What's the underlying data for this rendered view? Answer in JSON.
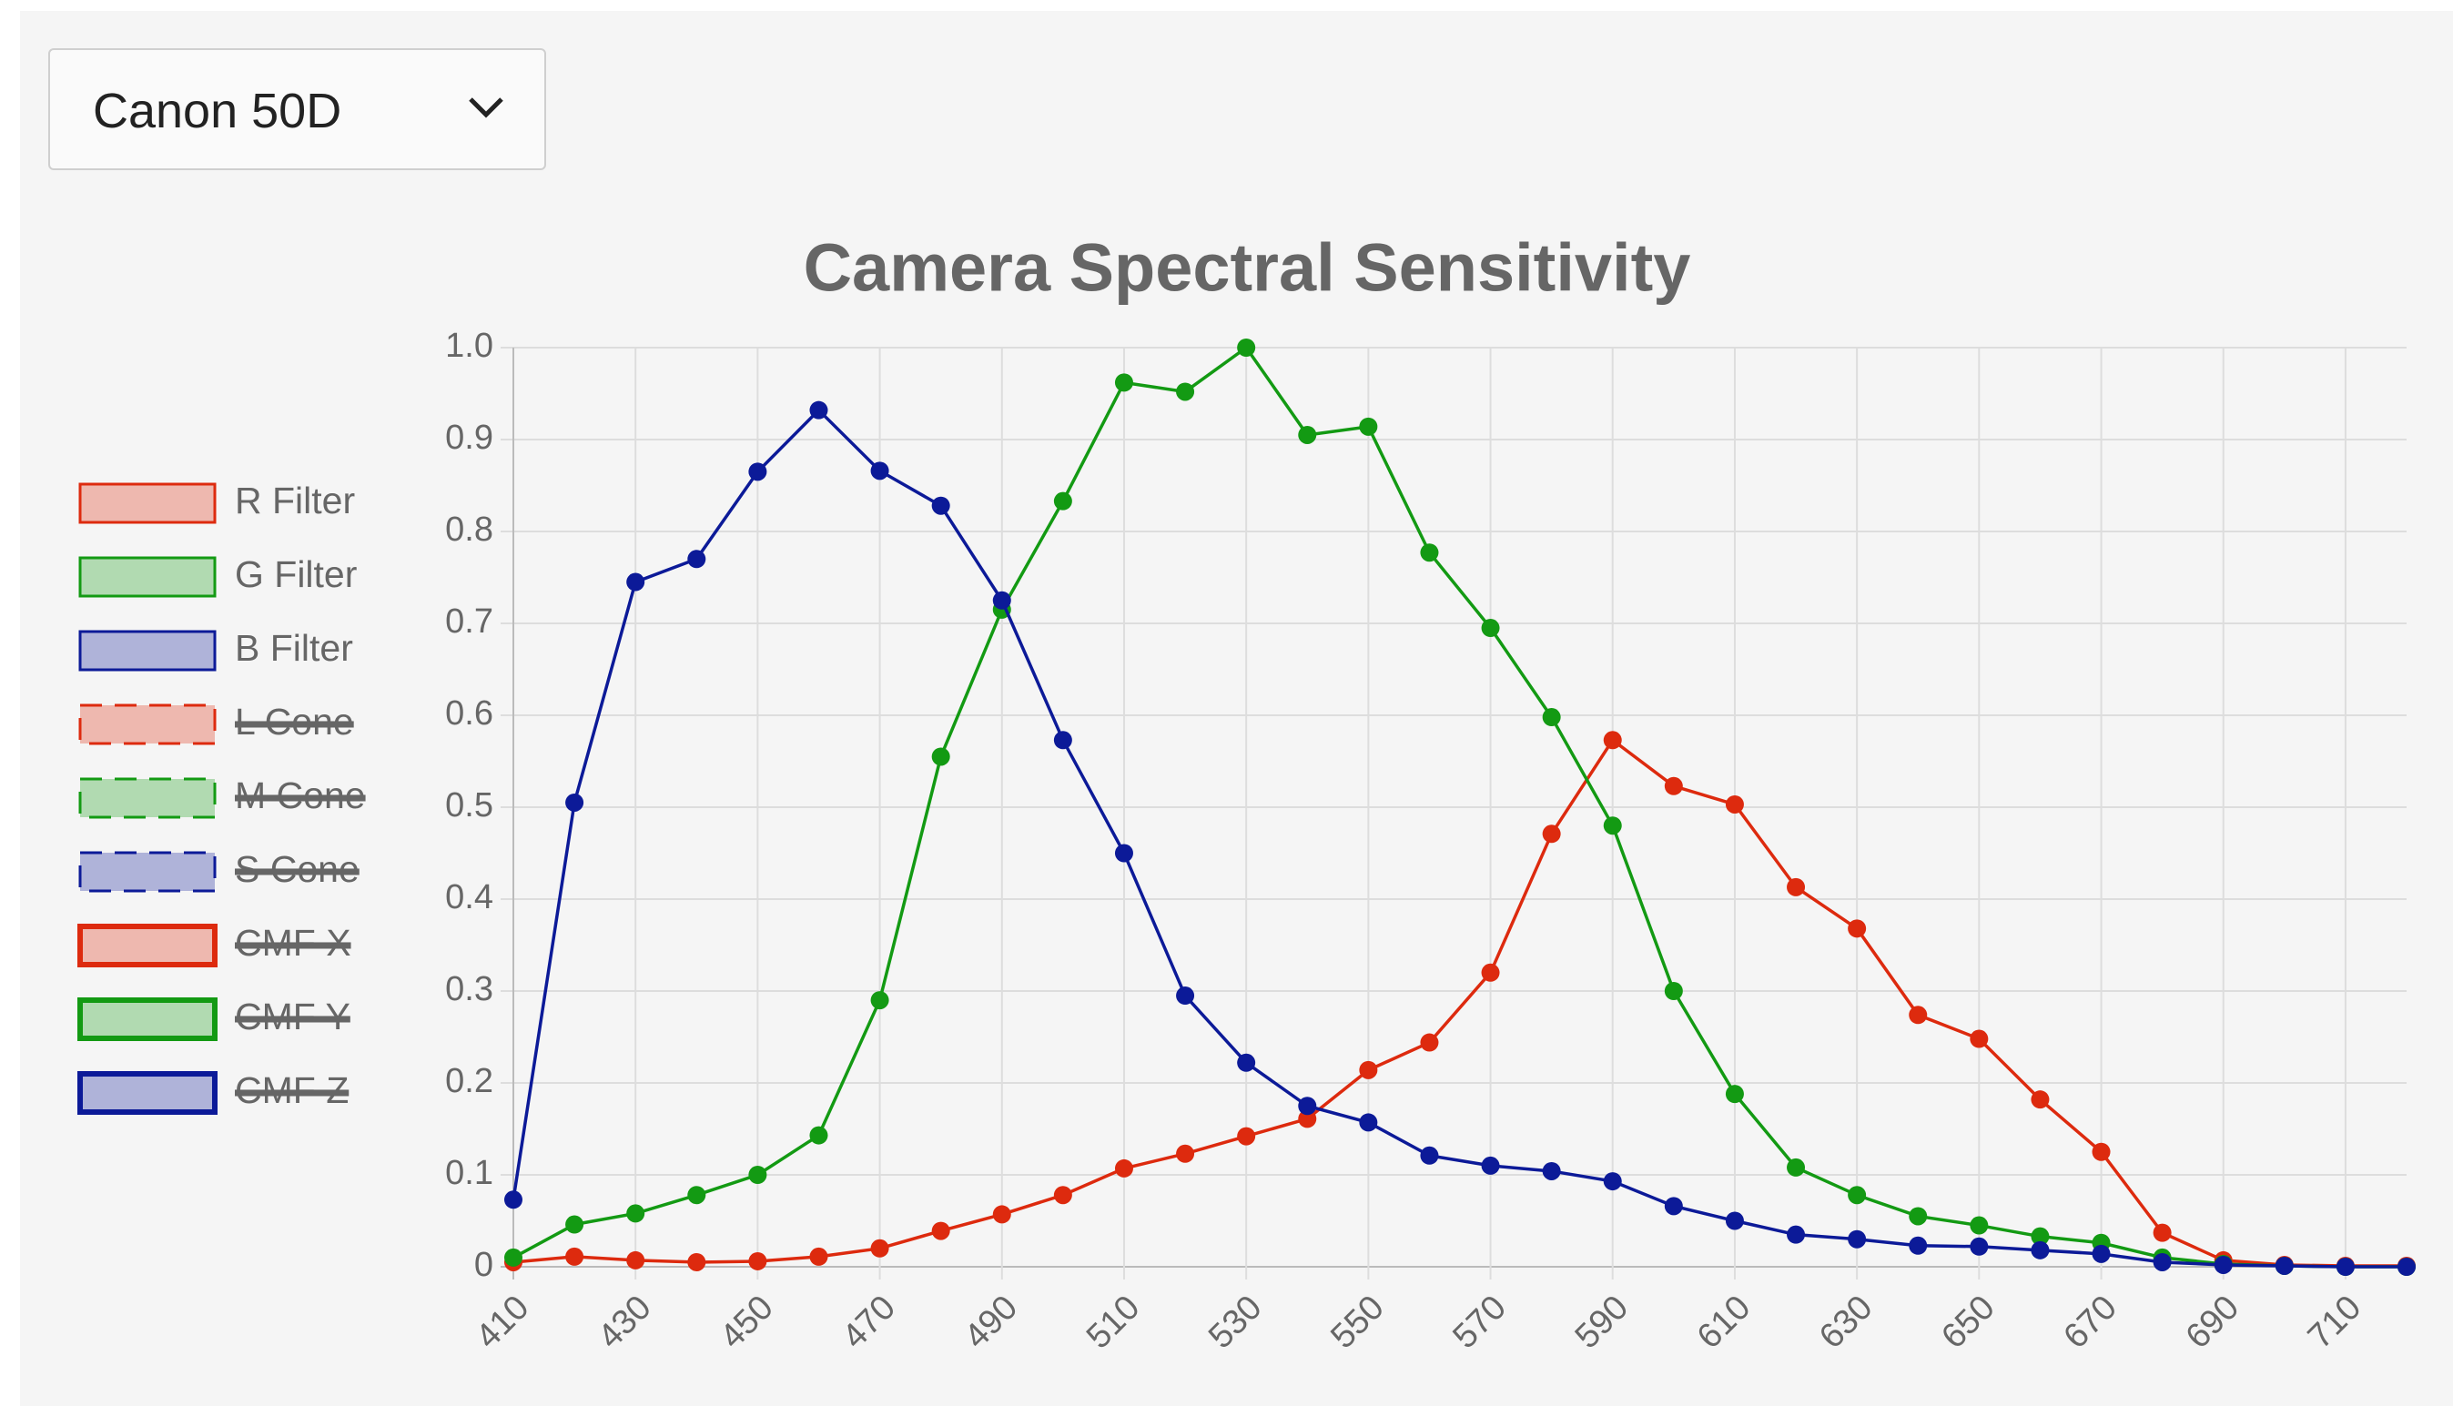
{
  "dropdown": {
    "selected": "Canon 50D"
  },
  "chart_data": {
    "type": "line",
    "title": "Camera Spectral Sensitivity",
    "x": [
      410,
      420,
      430,
      440,
      450,
      460,
      470,
      480,
      490,
      500,
      510,
      520,
      530,
      540,
      550,
      560,
      570,
      580,
      590,
      600,
      610,
      620,
      630,
      640,
      650,
      660,
      670,
      680,
      690,
      700,
      710,
      720
    ],
    "xlim": [
      410,
      720
    ],
    "xticks": [
      410,
      430,
      450,
      470,
      490,
      510,
      530,
      550,
      570,
      590,
      610,
      630,
      650,
      670,
      690,
      710
    ],
    "ylim": [
      0,
      1
    ],
    "yticks": [
      0,
      0.1,
      0.2,
      0.3,
      0.4,
      0.5,
      0.6,
      0.7,
      0.8,
      0.9,
      {
        "value": 1,
        "label": "1.0"
      }
    ],
    "grid": true,
    "legend": "left",
    "series": [
      {
        "name": "R Filter",
        "color": "#dd2a0e",
        "values": [
          0.005,
          0.011,
          0.007,
          0.005,
          0.006,
          0.011,
          0.02,
          0.039,
          0.057,
          0.078,
          0.107,
          0.123,
          0.142,
          0.161,
          0.214,
          0.244,
          0.32,
          0.471,
          0.573,
          0.523,
          0.503,
          0.413,
          0.368,
          0.274,
          0.248,
          0.182,
          0.125,
          0.037,
          0.007,
          0.002,
          0.001,
          0.001
        ]
      },
      {
        "name": "G Filter",
        "color": "#139a13",
        "values": [
          0.01,
          0.046,
          0.058,
          0.078,
          0.1,
          0.143,
          0.29,
          0.555,
          0.715,
          0.833,
          0.962,
          0.952,
          1.0,
          0.905,
          0.914,
          0.777,
          0.695,
          0.598,
          0.48,
          0.3,
          0.188,
          0.108,
          0.078,
          0.055,
          0.045,
          0.033,
          0.026,
          0.01,
          0.003,
          0.001,
          0,
          0
        ]
      },
      {
        "name": "B Filter",
        "color": "#0c1a98",
        "values": [
          0.073,
          0.505,
          0.745,
          0.77,
          0.865,
          0.932,
          0.866,
          0.828,
          0.725,
          0.573,
          0.45,
          0.295,
          0.222,
          0.175,
          0.157,
          0.121,
          0.11,
          0.104,
          0.093,
          0.066,
          0.05,
          0.035,
          0.03,
          0.023,
          0.022,
          0.018,
          0.014,
          0.005,
          0.002,
          0.001,
          0,
          0
        ]
      }
    ],
    "hidden_series": [
      {
        "name": "L Cone",
        "color": "#dd2a0e",
        "border": "dashed"
      },
      {
        "name": "M Cone",
        "color": "#139a13",
        "border": "dashed"
      },
      {
        "name": "S Cone",
        "color": "#0c1a98",
        "border": "dashed"
      },
      {
        "name": "CMF X",
        "color": "#dd2a0e",
        "border": "thick"
      },
      {
        "name": "CMF Y",
        "color": "#139a13",
        "border": "thick"
      },
      {
        "name": "CMF Z",
        "color": "#0c1a98",
        "border": "thick"
      }
    ]
  }
}
